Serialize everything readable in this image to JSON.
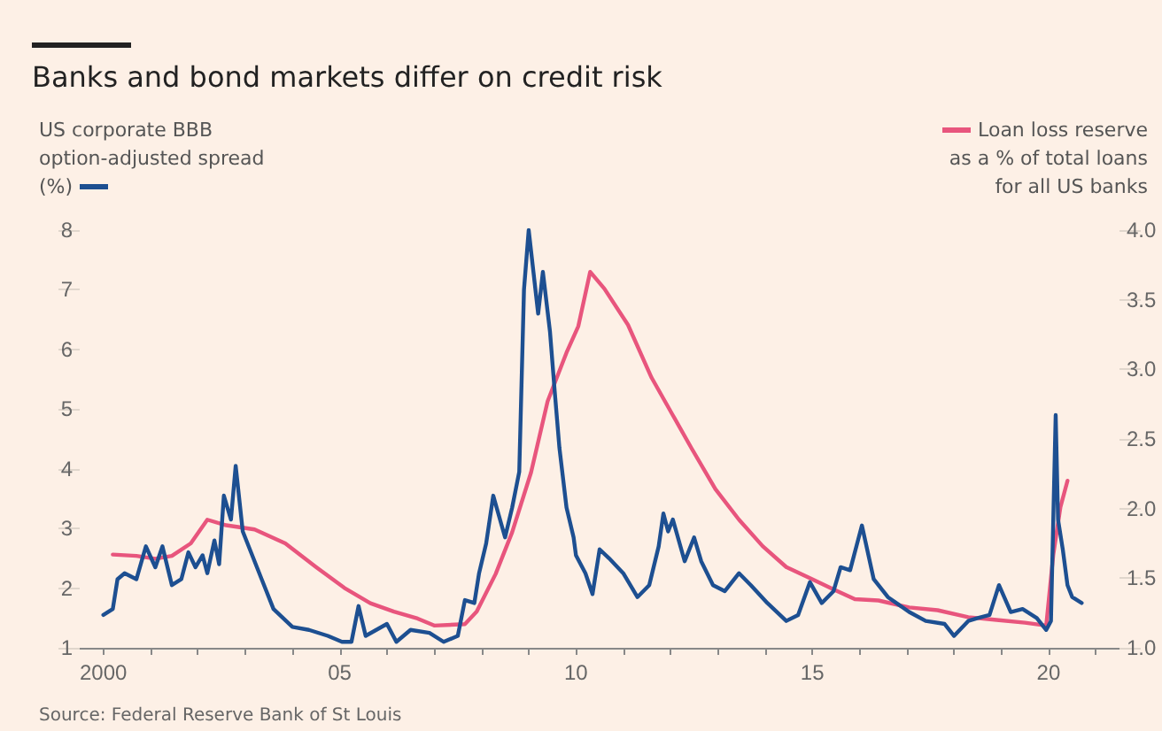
{
  "chart_data": {
    "type": "line",
    "title": "Banks and bond markets differ on credit risk",
    "ylabel": "US corporate BBB option-adjusted spread (%)",
    "y2label": "Loan loss reserve as a % of total loans for all US banks",
    "annotations": [
      "Source: Federal Reserve Bank of St Louis"
    ],
    "xlim": [
      1999.5,
      2021.5
    ],
    "xticks": [
      {
        "value": 2000,
        "label": "2000"
      },
      {
        "value": 2001,
        "label": null
      },
      {
        "value": 2002,
        "label": null
      },
      {
        "value": 2003,
        "label": null
      },
      {
        "value": 2004,
        "label": null
      },
      {
        "value": 2005,
        "label": "05"
      },
      {
        "value": 2006,
        "label": null
      },
      {
        "value": 2007,
        "label": null
      },
      {
        "value": 2008,
        "label": null
      },
      {
        "value": 2009,
        "label": null
      },
      {
        "value": 2010,
        "label": "10"
      },
      {
        "value": 2011,
        "label": null
      },
      {
        "value": 2012,
        "label": null
      },
      {
        "value": 2013,
        "label": null
      },
      {
        "value": 2014,
        "label": null
      },
      {
        "value": 2015,
        "label": "15"
      },
      {
        "value": 2016,
        "label": null
      },
      {
        "value": 2017,
        "label": null
      },
      {
        "value": 2018,
        "label": null
      },
      {
        "value": 2019,
        "label": null
      },
      {
        "value": 2020,
        "label": "20"
      },
      {
        "value": 2021,
        "label": null
      }
    ],
    "ylim": [
      1,
      8
    ],
    "yticks": [
      1,
      2,
      3,
      4,
      5,
      6,
      7,
      8
    ],
    "y2lim": [
      1,
      4
    ],
    "y2ticks": [
      {
        "value": 1,
        "label": "1.0"
      },
      {
        "value": 1.5,
        "label": "1.5"
      },
      {
        "value": 2,
        "label": "2.0"
      },
      {
        "value": 2.5,
        "label": "2.5"
      },
      {
        "value": 3,
        "label": "3.0"
      },
      {
        "value": 3.5,
        "label": "3.5"
      },
      {
        "value": 4,
        "label": "4.0"
      }
    ],
    "grid": false,
    "marker": "none",
    "line_style": "solid",
    "series": [
      {
        "color": "#1d4f91",
        "x": [
          2000.0,
          2000.2,
          2000.3,
          2000.45,
          2000.7,
          2000.9,
          2001.1,
          2001.25,
          2001.45,
          2001.65,
          2001.8,
          2001.95,
          2002.1,
          2002.2,
          2002.35,
          2002.45,
          2002.55,
          2002.7,
          2002.8,
          2002.95,
          2003.1,
          2003.35,
          2003.6,
          2004.0,
          2004.35,
          2004.75,
          2005.05,
          2005.25,
          2005.4,
          2005.55,
          2006.0,
          2006.2,
          2006.5,
          2006.9,
          2007.2,
          2007.5,
          2007.65,
          2007.85,
          2007.95,
          2008.1,
          2008.25,
          2008.5,
          2008.65,
          2008.8,
          2008.9,
          2009.0,
          2009.1,
          2009.2,
          2009.3,
          2009.45,
          2009.55,
          2009.65,
          2009.8,
          2009.95,
          2010.0,
          2010.2,
          2010.35,
          2010.5,
          2010.7,
          2011.0,
          2011.3,
          2011.55,
          2011.75,
          2011.85,
          2011.95,
          2012.05,
          2012.3,
          2012.5,
          2012.65,
          2012.9,
          2013.15,
          2013.45,
          2013.7,
          2014.05,
          2014.45,
          2014.7,
          2014.95,
          2015.2,
          2015.45,
          2015.6,
          2015.8,
          2016.05,
          2016.3,
          2016.6,
          2017.05,
          2017.4,
          2017.8,
          2018.0,
          2018.3,
          2018.5,
          2018.75,
          2018.95,
          2019.2,
          2019.45,
          2019.75,
          2019.95,
          2020.05,
          2020.15,
          2020.2,
          2020.3,
          2020.4,
          2020.5,
          2020.7
        ],
        "values": [
          1.55,
          1.65,
          2.15,
          2.25,
          2.15,
          2.7,
          2.35,
          2.7,
          2.05,
          2.15,
          2.6,
          2.35,
          2.55,
          2.25,
          2.8,
          2.4,
          3.55,
          3.15,
          4.05,
          2.95,
          2.65,
          2.15,
          1.65,
          1.35,
          1.3,
          1.2,
          1.1,
          1.1,
          1.7,
          1.2,
          1.4,
          1.1,
          1.3,
          1.25,
          1.1,
          1.2,
          1.8,
          1.75,
          2.25,
          2.75,
          3.55,
          2.85,
          3.35,
          3.95,
          7.0,
          8.0,
          7.3,
          6.6,
          7.3,
          6.3,
          5.3,
          4.35,
          3.35,
          2.85,
          2.55,
          2.25,
          1.9,
          2.65,
          2.5,
          2.25,
          1.85,
          2.05,
          2.7,
          3.25,
          2.95,
          3.15,
          2.45,
          2.85,
          2.45,
          2.05,
          1.95,
          2.25,
          2.05,
          1.75,
          1.45,
          1.55,
          2.1,
          1.75,
          1.95,
          2.35,
          2.3,
          3.05,
          2.15,
          1.85,
          1.6,
          1.45,
          1.4,
          1.2,
          1.45,
          1.5,
          1.55,
          2.05,
          1.6,
          1.65,
          1.5,
          1.3,
          1.45,
          4.9,
          3.15,
          2.65,
          2.05,
          1.85,
          1.75
        ]
      },
      {
        "color": "#e8557d",
        "axis": "y2",
        "x": [
          2000.2,
          2000.7,
          2001.1,
          2001.45,
          2001.85,
          2002.2,
          2002.6,
          2003.2,
          2003.85,
          2004.5,
          2005.1,
          2005.65,
          2006.15,
          2006.65,
          2007.0,
          2007.65,
          2007.9,
          2008.3,
          2008.65,
          2009.05,
          2009.4,
          2009.8,
          2010.05,
          2010.3,
          2010.6,
          2011.1,
          2011.6,
          2012.05,
          2012.45,
          2012.95,
          2013.45,
          2013.95,
          2014.45,
          2014.95,
          2015.45,
          2015.9,
          2016.4,
          2017.05,
          2017.65,
          2018.3,
          2018.9,
          2019.5,
          2019.95,
          2020.1,
          2020.25,
          2020.4
        ],
        "values": [
          1.67,
          1.66,
          1.64,
          1.66,
          1.75,
          1.92,
          1.88,
          1.85,
          1.75,
          1.58,
          1.43,
          1.32,
          1.26,
          1.21,
          1.16,
          1.17,
          1.26,
          1.53,
          1.83,
          2.26,
          2.77,
          3.12,
          3.31,
          3.7,
          3.58,
          3.32,
          2.94,
          2.67,
          2.43,
          2.14,
          1.92,
          1.73,
          1.58,
          1.5,
          1.42,
          1.35,
          1.34,
          1.29,
          1.27,
          1.22,
          1.2,
          1.18,
          1.16,
          1.67,
          2.01,
          2.2
        ]
      }
    ]
  }
}
